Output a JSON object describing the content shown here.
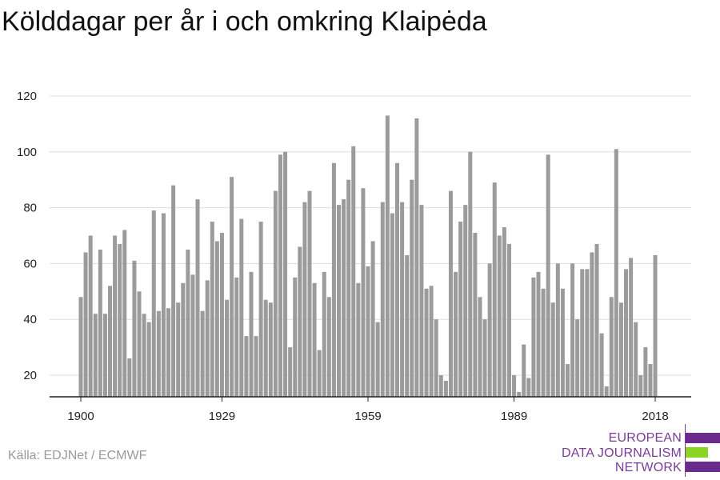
{
  "title": "Kölddagar per år i och omkring Klaipėda",
  "source": "Källa: EDJNet / ECMWF",
  "logo": {
    "line1": "EUROPEAN",
    "line2": "DATA JOURNALISM",
    "line3": "NETWORK",
    "colors": {
      "purple": "#6b2b8c",
      "green": "#8cd424",
      "text": "#7a3b9a"
    }
  },
  "colors": {
    "bar": "#9b9b9b",
    "grid": "#dddddd",
    "axis": "#222222",
    "tick_label": "#222222"
  },
  "chart_data": {
    "type": "bar",
    "title": "Kölddagar per år i och omkring Klaipėda",
    "xlabel": "",
    "ylabel": "",
    "x_ticks": [
      1900,
      1929,
      1959,
      1989,
      2018
    ],
    "y_ticks": [
      20,
      40,
      60,
      80,
      100,
      120
    ],
    "ylim": [
      12,
      125
    ],
    "xlim": [
      1900,
      2018
    ],
    "grid": true,
    "legend": "none",
    "categories": [
      1900,
      1901,
      1902,
      1903,
      1904,
      1905,
      1906,
      1907,
      1908,
      1909,
      1910,
      1911,
      1912,
      1913,
      1914,
      1915,
      1916,
      1917,
      1918,
      1919,
      1920,
      1921,
      1922,
      1923,
      1924,
      1925,
      1926,
      1927,
      1928,
      1929,
      1930,
      1931,
      1932,
      1933,
      1934,
      1935,
      1936,
      1937,
      1938,
      1939,
      1940,
      1941,
      1942,
      1943,
      1944,
      1945,
      1946,
      1947,
      1948,
      1949,
      1950,
      1951,
      1952,
      1953,
      1954,
      1955,
      1956,
      1957,
      1958,
      1959,
      1960,
      1961,
      1962,
      1963,
      1964,
      1965,
      1966,
      1967,
      1968,
      1969,
      1970,
      1971,
      1972,
      1973,
      1974,
      1975,
      1976,
      1977,
      1978,
      1979,
      1980,
      1981,
      1982,
      1983,
      1984,
      1985,
      1986,
      1987,
      1988,
      1989,
      1990,
      1991,
      1992,
      1993,
      1994,
      1995,
      1996,
      1997,
      1998,
      1999,
      2000,
      2001,
      2002,
      2003,
      2004,
      2005,
      2006,
      2007,
      2008,
      2009,
      2010,
      2011,
      2012,
      2013,
      2014,
      2015,
      2016,
      2017,
      2018
    ],
    "values": [
      48,
      64,
      70,
      42,
      65,
      42,
      52,
      70,
      67,
      72,
      26,
      61,
      50,
      42,
      39,
      79,
      43,
      78,
      44,
      88,
      46,
      53,
      65,
      56,
      83,
      43,
      54,
      75,
      68,
      71,
      47,
      91,
      55,
      76,
      34,
      57,
      34,
      75,
      47,
      46,
      86,
      99,
      100,
      30,
      55,
      66,
      82,
      86,
      53,
      29,
      57,
      48,
      96,
      81,
      83,
      90,
      102,
      53,
      87,
      59,
      68,
      39,
      82,
      113,
      78,
      96,
      82,
      63,
      90,
      112,
      81,
      51,
      52,
      40,
      20,
      18,
      86,
      57,
      75,
      81,
      100,
      71,
      48,
      40,
      60,
      89,
      70,
      73,
      67,
      20,
      14,
      31,
      19,
      55,
      57,
      51,
      99,
      46,
      60,
      51,
      24,
      60,
      40,
      58,
      58,
      64,
      67,
      35,
      16,
      48,
      101,
      46,
      58,
      62,
      39,
      20,
      30,
      24,
      63
    ]
  }
}
